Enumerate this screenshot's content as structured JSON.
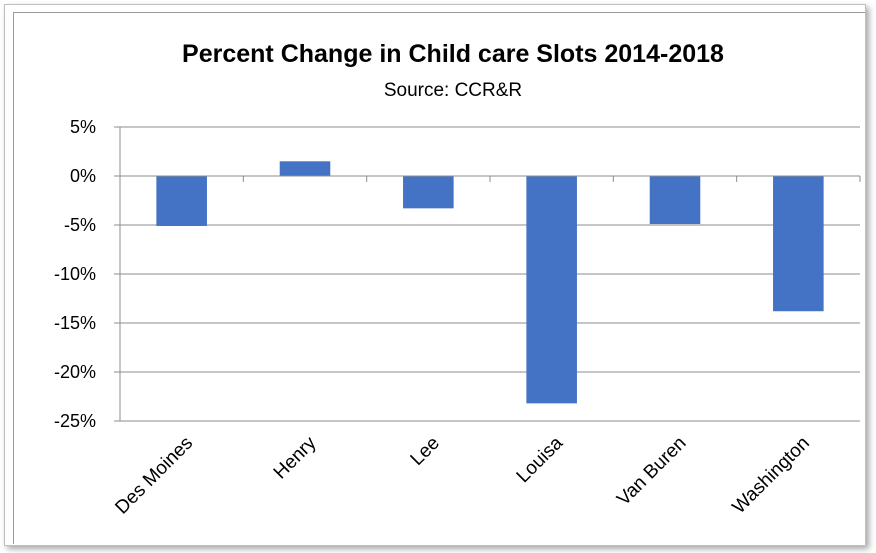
{
  "chart_data": {
    "type": "bar",
    "title": "Percent Change in Child care Slots 2014-2018",
    "subtitle": "Source: CCR&R",
    "categories": [
      "Des Moines",
      "Henry",
      "Lee",
      "Louisa",
      "Van Buren",
      "Washington"
    ],
    "values": [
      -5.1,
      1.5,
      -3.3,
      -23.2,
      -4.9,
      -13.8
    ],
    "value_unit": "%",
    "ylim": [
      -25,
      5
    ],
    "yticks": [
      5,
      0,
      -5,
      -10,
      -15,
      -20,
      -25
    ],
    "ytick_labels": [
      "5%",
      "0%",
      "-5%",
      "-10%",
      "-15%",
      "-20%",
      "-25%"
    ],
    "xlabel": "",
    "ylabel": "",
    "grid": true,
    "legend": "none",
    "bar_color": "#4472C4"
  }
}
